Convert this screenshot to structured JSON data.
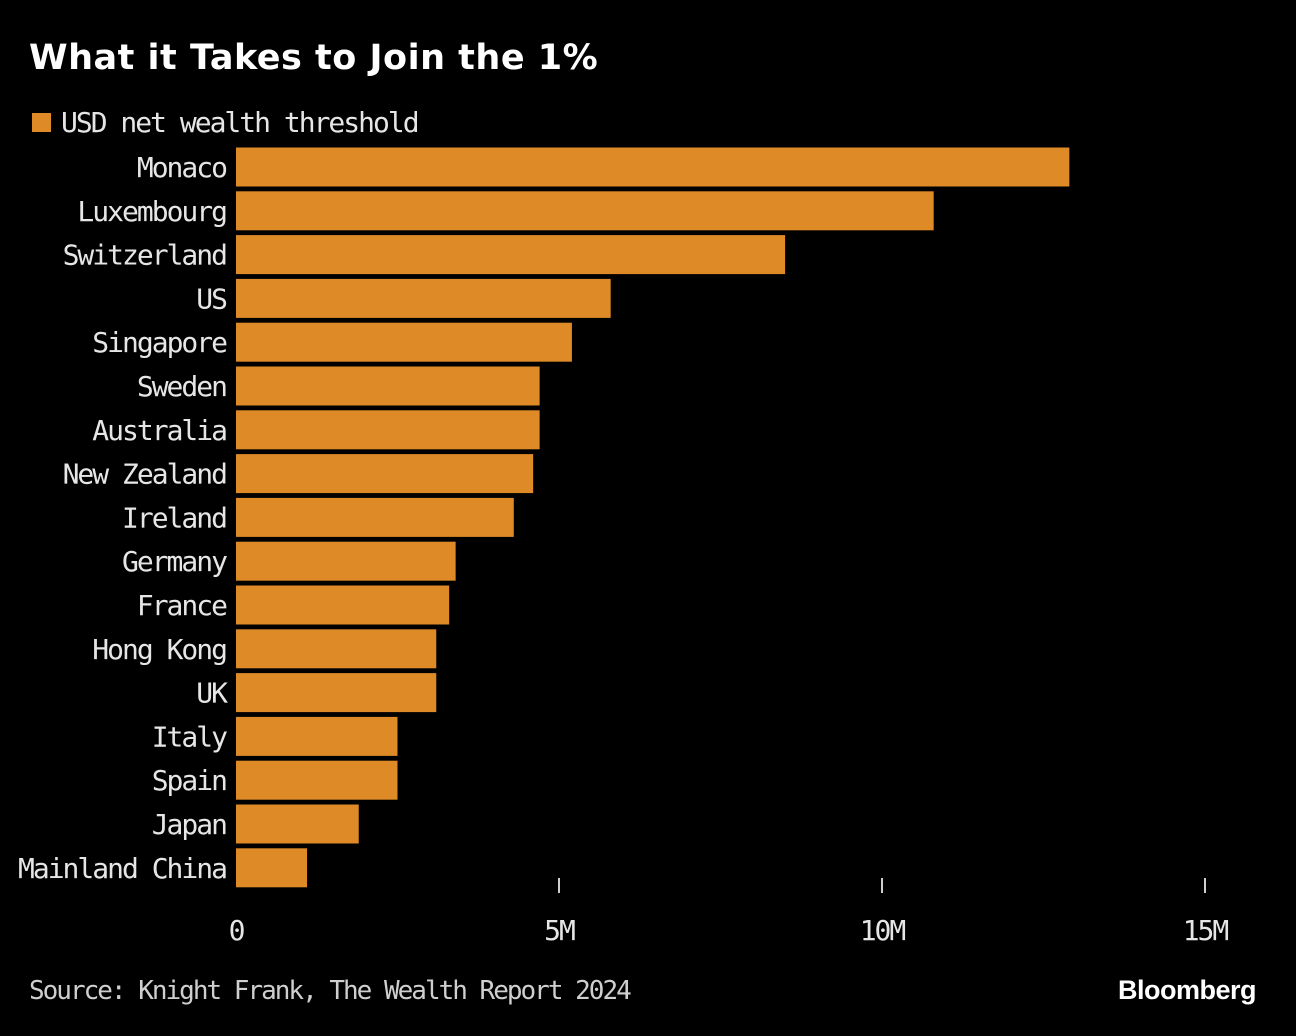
{
  "chart_data": {
    "type": "bar",
    "orientation": "horizontal",
    "title": "What it Takes to Join the 1%",
    "legend": [
      {
        "name": "USD net wealth threshold",
        "color": "#dd8a27"
      }
    ],
    "legend_placement": "top-left",
    "categories": [
      "Monaco",
      "Luxembourg",
      "Switzerland",
      "US",
      "Singapore",
      "Sweden",
      "Australia",
      "New Zealand",
      "Ireland",
      "Germany",
      "France",
      "Hong Kong",
      "UK",
      "Italy",
      "Spain",
      "Japan",
      "Mainland China"
    ],
    "series": [
      {
        "name": "USD net wealth threshold",
        "values": [
          12.9,
          10.8,
          8.5,
          5.8,
          5.2,
          4.7,
          4.7,
          4.6,
          4.3,
          3.4,
          3.3,
          3.1,
          3.1,
          2.5,
          2.5,
          1.9,
          1.1
        ]
      }
    ],
    "unit": "M USD",
    "xlim": [
      0,
      15
    ],
    "xticks": [
      0,
      5,
      10,
      15
    ],
    "xtick_labels": [
      "0",
      "5M",
      "10M",
      "15M"
    ],
    "grid": false,
    "bar_color": "#dd8a27",
    "background": "#000000"
  },
  "footer": {
    "source": "Source: Knight Frank, The Wealth Report 2024",
    "logo": "Bloomberg"
  }
}
